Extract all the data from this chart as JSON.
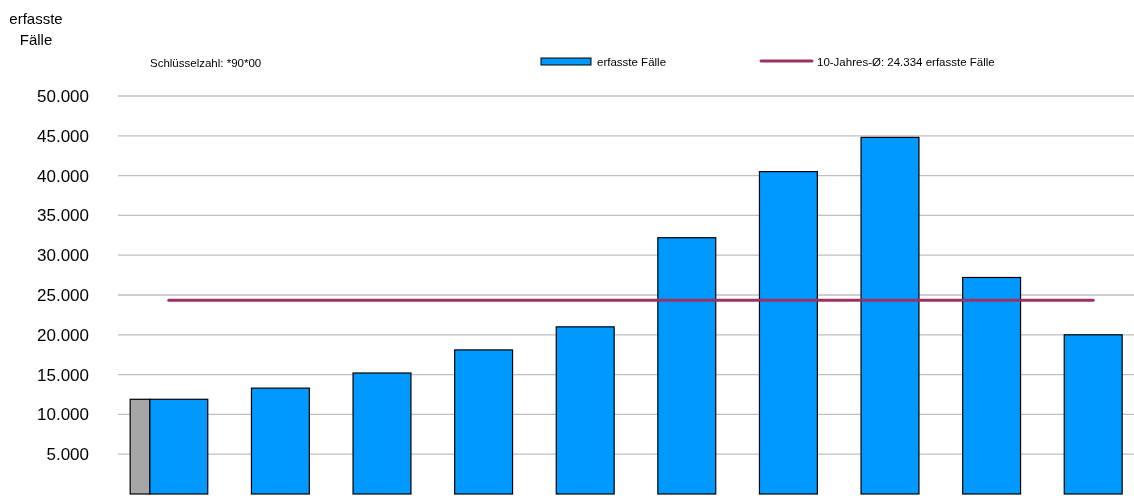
{
  "chart_data": {
    "type": "bar",
    "ylabel": "erfasste Fälle",
    "annotations": [
      "Schlüsselzahl: *90*00"
    ],
    "categories": [
      null,
      null,
      null,
      null,
      null,
      null,
      null,
      null,
      null,
      null
    ],
    "series": [
      {
        "name": "erfasste Fälle",
        "color": "#0099ff",
        "values": [
          11900,
          13300,
          15200,
          18100,
          21000,
          32200,
          40500,
          44800,
          27200,
          20000
        ]
      },
      {
        "color": "#a6a6a6",
        "values": [
          11900,
          null,
          null,
          null,
          null,
          null,
          null,
          null,
          null,
          null
        ]
      }
    ],
    "ylim": [
      0,
      50000
    ],
    "yticks": [
      {
        "value": 5000,
        "label": "5.000"
      },
      {
        "value": 10000,
        "label": "10.000"
      },
      {
        "value": 15000,
        "label": "15.000"
      },
      {
        "value": 20000,
        "label": "20.000"
      },
      {
        "value": 25000,
        "label": "25.000"
      },
      {
        "value": 30000,
        "label": "30.000"
      },
      {
        "value": 35000,
        "label": "35.000"
      },
      {
        "value": 40000,
        "label": "40.000"
      },
      {
        "value": 45000,
        "label": "45.000"
      },
      {
        "value": 50000,
        "label": "50.000"
      }
    ],
    "grid": "y",
    "legend": "top right",
    "ref_lines": [
      {
        "axis": "y",
        "value": 24334,
        "label": "10-Jahres-Ø: 24.334 erfasste Fälle",
        "color": "#993366"
      }
    ]
  }
}
